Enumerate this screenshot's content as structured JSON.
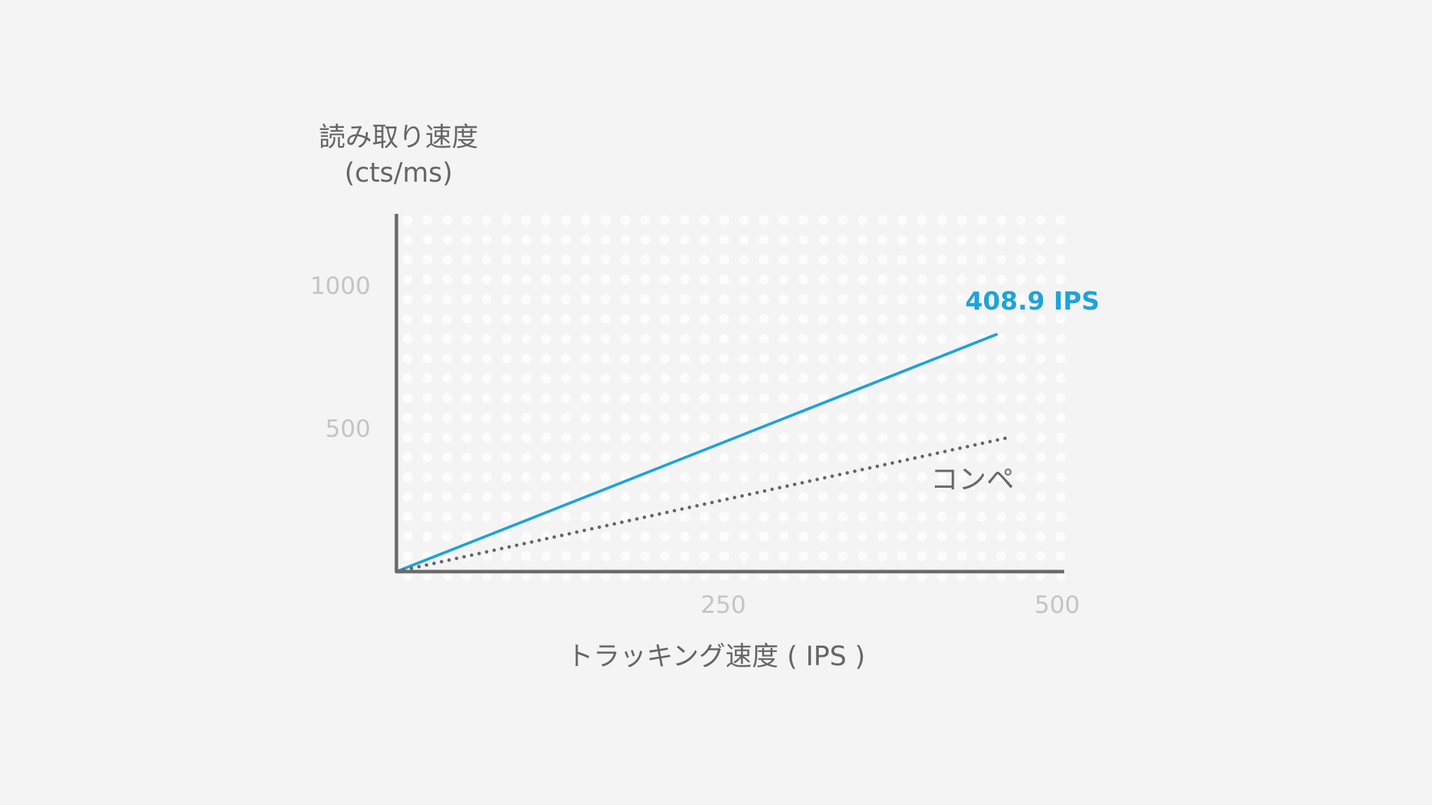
{
  "chart_data": {
    "type": "line",
    "ylabel_line1": "読み取り速度",
    "ylabel_line2": "(cts/ms)",
    "xlabel": "トラッキング速度 ( IPS )",
    "xlim": [
      0,
      500
    ],
    "ylim": [
      0,
      1250
    ],
    "x_ticks": [
      250,
      500
    ],
    "y_ticks": [
      500,
      1000
    ],
    "series": [
      {
        "name": "408.9 IPS",
        "color": "#1fa3d8",
        "style": "solid",
        "x": [
          0,
          450
        ],
        "y": [
          0,
          830
        ]
      },
      {
        "name": "コンペ",
        "color": "#666666",
        "style": "dotted",
        "x": [
          0,
          460
        ],
        "y": [
          0,
          470
        ]
      }
    ]
  }
}
